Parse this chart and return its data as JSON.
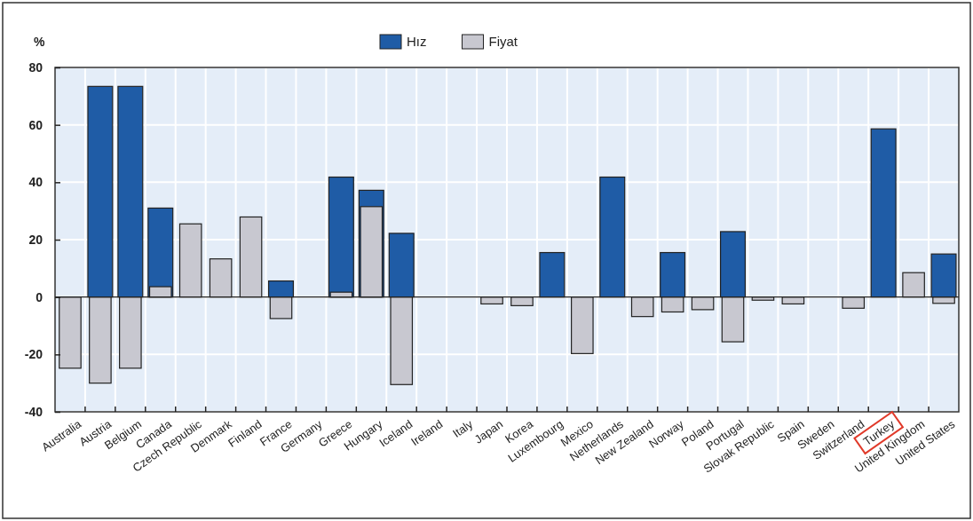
{
  "chart_data": {
    "type": "bar",
    "ylabel": "%",
    "categories": [
      "Australia",
      "Austria",
      "Belgium",
      "Canada",
      "Czech Republic",
      "Denmark",
      "Finland",
      "France",
      "Germany",
      "Greece",
      "Hungary",
      "Iceland",
      "Ireland",
      "Italy",
      "Japan",
      "Korea",
      "Luxembourg",
      "Mexico",
      "Netherlands",
      "New Zealand",
      "Norway",
      "Poland",
      "Portugal",
      "Slovak Republic",
      "Spain",
      "Sweden",
      "Switzerland",
      "Turkey",
      "United Kingdom",
      "United States"
    ],
    "series": [
      {
        "name": "Hız",
        "color": "#1f5ca6",
        "values": [
          0,
          73.4,
          73.4,
          31,
          0,
          0,
          0,
          5.6,
          0,
          41.8,
          37.2,
          22.2,
          0,
          0,
          0,
          0,
          15.5,
          0,
          41.8,
          0,
          15.5,
          0,
          22.8,
          0,
          0,
          0,
          0,
          58.6,
          0,
          15
        ]
      },
      {
        "name": "Fiyat",
        "color": "#c8c8d0",
        "values": [
          -24.8,
          -30,
          -24.8,
          3.6,
          25.5,
          13.3,
          27.9,
          -7.5,
          0,
          1.7,
          31.5,
          -30.5,
          0,
          0,
          -2.4,
          -3,
          0,
          -19.7,
          0,
          -6.8,
          -5.2,
          -4.4,
          -15.6,
          -1.1,
          -2.4,
          0,
          -3.9,
          0,
          8.5,
          -2.2
        ]
      }
    ],
    "ylim": [
      -40,
      80
    ],
    "yticks": [
      -40,
      -20,
      0,
      20,
      40,
      60,
      80
    ],
    "grid": true,
    "legend": "top"
  }
}
